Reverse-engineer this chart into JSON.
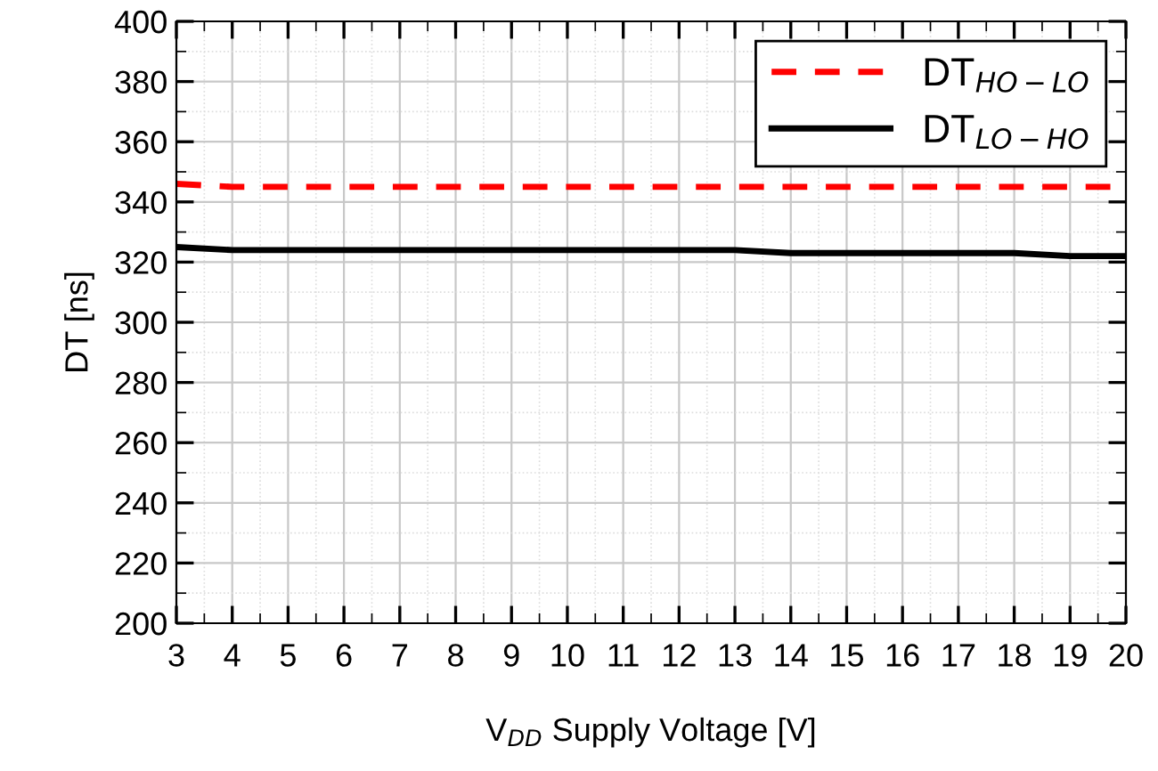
{
  "chart_data": {
    "type": "line",
    "xlabel": "V$_{DD}$ Supply Voltage [V]",
    "ylabel": "DT [ns]",
    "x": [
      3,
      4,
      5,
      6,
      7,
      8,
      9,
      10,
      11,
      12,
      13,
      14,
      15,
      16,
      17,
      18,
      19,
      20
    ],
    "series": [
      {
        "name": "DT$_{HO−LO}$",
        "color": "#ff0000",
        "line_style": "dashed",
        "values": [
          346,
          345,
          345,
          345,
          345,
          345,
          345,
          345,
          345,
          345,
          345,
          345,
          345,
          345,
          345,
          345,
          345,
          345
        ]
      },
      {
        "name": "DT$_{LO−HO}$",
        "color": "#000000",
        "line_style": "solid",
        "values": [
          325,
          324,
          324,
          324,
          324,
          324,
          324,
          324,
          324,
          324,
          324,
          323,
          323,
          323,
          323,
          323,
          322,
          322
        ]
      }
    ],
    "xlim": [
      3,
      20
    ],
    "xticks": [
      3,
      4,
      5,
      6,
      7,
      8,
      9,
      10,
      11,
      12,
      13,
      14,
      15,
      16,
      17,
      18,
      19,
      20
    ],
    "ylim": [
      200,
      400
    ],
    "yticks": [
      200,
      220,
      240,
      260,
      280,
      300,
      320,
      340,
      360,
      380,
      400
    ],
    "grid": true,
    "legend": "top right",
    "marker": "none"
  }
}
